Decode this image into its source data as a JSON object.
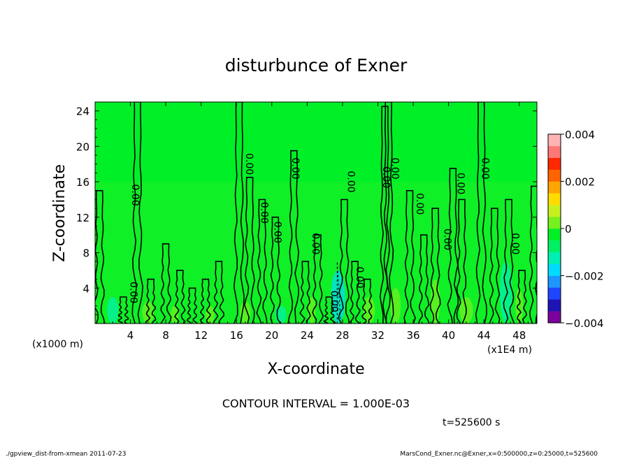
{
  "chart_data": {
    "type": "heatmap",
    "title": "disturbunce of Exner",
    "xlabel": "X-coordinate",
    "ylabel": "Z-coordinate",
    "x_unit": "(x1E4 m)",
    "y_unit": "(x1000 m)",
    "xlim": [
      0,
      50
    ],
    "ylim": [
      0,
      25
    ],
    "x_ticks": [
      "4",
      "8",
      "12",
      "16",
      "20",
      "24",
      "28",
      "32",
      "36",
      "40",
      "44",
      "48"
    ],
    "y_ticks": [
      "4",
      "8",
      "12",
      "16",
      "20",
      "24"
    ],
    "colorbar": {
      "min": -0.004,
      "max": 0.004,
      "ticks": [
        "0.004",
        "0.002",
        "0",
        "−0.002",
        "−0.004"
      ],
      "colors": [
        "#7b009c",
        "#1e14b4",
        "#1e46ff",
        "#1e96ff",
        "#00dcff",
        "#00f0b4",
        "#00f064",
        "#00f028",
        "#78f01e",
        "#c8f01e",
        "#ffdc00",
        "#ffa500",
        "#ff6400",
        "#ff2800",
        "#ff7878",
        "#ffb4b4"
      ]
    },
    "contour_interval": "CONTOUR INTERVAL = 1.000E-03",
    "contour_labels": [
      {
        "x": 4.2,
        "y": 14.5,
        "text": "0.00"
      },
      {
        "x": 4.0,
        "y": 3.5,
        "text": "0.00"
      },
      {
        "x": 17.1,
        "y": 18.0,
        "text": "0.00"
      },
      {
        "x": 18.8,
        "y": 12.5,
        "text": "0.00"
      },
      {
        "x": 20.3,
        "y": 10.3,
        "text": "0.00"
      },
      {
        "x": 22.3,
        "y": 17.5,
        "text": "0.00"
      },
      {
        "x": 24.6,
        "y": 9.0,
        "text": "0.00"
      },
      {
        "x": 26.7,
        "y": 2.5,
        "text": "0.00"
      },
      {
        "x": 28.6,
        "y": 16.0,
        "text": "0.00"
      },
      {
        "x": 29.6,
        "y": 5.2,
        "text": "0.00"
      },
      {
        "x": 32.6,
        "y": 16.5,
        "text": "0.00"
      },
      {
        "x": 33.6,
        "y": 17.5,
        "text": "0.00"
      },
      {
        "x": 36.4,
        "y": 13.5,
        "text": "0.00"
      },
      {
        "x": 39.5,
        "y": 9.5,
        "text": "0.00"
      },
      {
        "x": 41.0,
        "y": 15.8,
        "text": "0.00"
      },
      {
        "x": 43.8,
        "y": 17.5,
        "text": "0.00"
      },
      {
        "x": 47.2,
        "y": 9.0,
        "text": "0.00"
      }
    ],
    "time_label": "t=525600 s"
  },
  "footer": {
    "left": "./gpview_dist-from-xmean  2011-07-23",
    "right": "MarsCond_Exner.nc@Exner,x=0:500000,z=0:25000,t=525600"
  }
}
